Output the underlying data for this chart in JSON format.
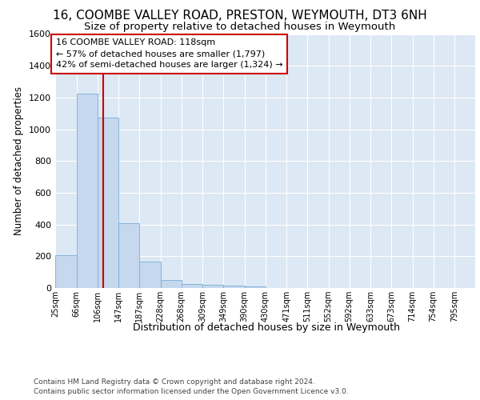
{
  "title1": "16, COOMBE VALLEY ROAD, PRESTON, WEYMOUTH, DT3 6NH",
  "title2": "Size of property relative to detached houses in Weymouth",
  "xlabel": "Distribution of detached houses by size in Weymouth",
  "ylabel": "Number of detached properties",
  "footer1": "Contains HM Land Registry data © Crown copyright and database right 2024.",
  "footer2": "Contains public sector information licensed under the Open Government Licence v3.0.",
  "bin_edges": [
    25,
    66,
    106,
    147,
    187,
    228,
    268,
    309,
    349,
    390,
    430,
    471,
    511,
    552,
    592,
    633,
    673,
    714,
    754,
    795,
    835
  ],
  "bar_heights": [
    205,
    1225,
    1075,
    410,
    165,
    50,
    25,
    18,
    15,
    10,
    0,
    0,
    0,
    0,
    0,
    0,
    0,
    0,
    0,
    0
  ],
  "bar_color": "#c5d8ee",
  "bar_edge_color": "#7aadd4",
  "vline_x": 118,
  "vline_color": "#cc0000",
  "annotation_line1": "16 COOMBE VALLEY ROAD: 118sqm",
  "annotation_line2": "← 57% of detached houses are smaller (1,797)",
  "annotation_line3": "42% of semi-detached houses are larger (1,324) →",
  "annotation_box_color": "#cc0000",
  "ylim": [
    0,
    1600
  ],
  "yticks": [
    0,
    200,
    400,
    600,
    800,
    1000,
    1200,
    1400,
    1600
  ],
  "axes_bg_color": "#dde8f5",
  "grid_color": "#ffffff",
  "title1_fontsize": 11,
  "title2_fontsize": 9.5,
  "annot_fontsize": 8,
  "xlabel_fontsize": 9,
  "ylabel_fontsize": 8.5,
  "footer_fontsize": 6.5
}
